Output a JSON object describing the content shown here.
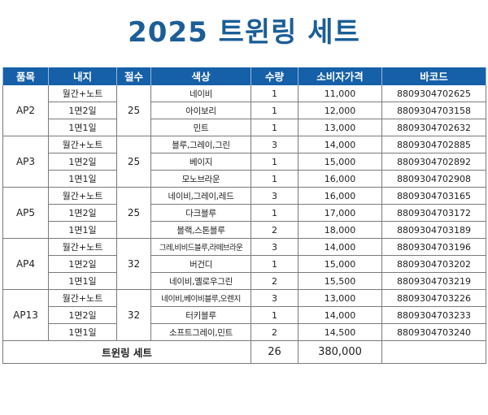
{
  "title": "2025 트윈링 세트",
  "headers": [
    "품목",
    "내지",
    "절수",
    "색상",
    "수량",
    "소비자가격",
    "바코드"
  ],
  "groups": [
    {
      "item": "AP2",
      "cut": "25",
      "rows": [
        {
          "inner": "월간+노트",
          "color": "네이비",
          "qty": "1",
          "price": "11,000",
          "barcode": "8809304702625"
        },
        {
          "inner": "1면2일",
          "color": "아이보리",
          "qty": "1",
          "price": "12,000",
          "barcode": "8809304703158"
        },
        {
          "inner": "1면1일",
          "color": "민트",
          "qty": "1",
          "price": "13,000",
          "barcode": "8809304702632"
        }
      ]
    },
    {
      "item": "AP3",
      "cut": "25",
      "rows": [
        {
          "inner": "월간+노트",
          "color": "블루,그레이,그린",
          "qty": "3",
          "price": "14,000",
          "barcode": "8809304702885"
        },
        {
          "inner": "1면2일",
          "color": "베이지",
          "qty": "1",
          "price": "15,000",
          "barcode": "8809304702892"
        },
        {
          "inner": "1면1일",
          "color": "모노브라운",
          "qty": "1",
          "price": "16,000",
          "barcode": "8809304702908"
        }
      ]
    },
    {
      "item": "AP5",
      "cut": "25",
      "rows": [
        {
          "inner": "월간+노트",
          "color": "네이비,그레이,레드",
          "qty": "3",
          "price": "16,000",
          "barcode": "8809304703165"
        },
        {
          "inner": "1면2일",
          "color": "다크블루",
          "qty": "1",
          "price": "17,000",
          "barcode": "8809304703172"
        },
        {
          "inner": "1면1일",
          "color": "블랙,스톤블루",
          "qty": "2",
          "price": "18,000",
          "barcode": "8809304703189"
        }
      ]
    },
    {
      "item": "AP4",
      "cut": "32",
      "rows": [
        {
          "inner": "월간+노트",
          "color": "그레,비비드블루,라떼브라운",
          "qty": "3",
          "price": "14,000",
          "barcode": "8809304703196"
        },
        {
          "inner": "1면2일",
          "color": "버건디",
          "qty": "1",
          "price": "15,000",
          "barcode": "8809304703202"
        },
        {
          "inner": "1면1일",
          "color": "네이비,옐로우그린",
          "qty": "2",
          "price": "15,500",
          "barcode": "8809304703219"
        }
      ]
    },
    {
      "item": "AP13",
      "cut": "32",
      "rows": [
        {
          "inner": "월간+노트",
          "color": "네이비,베이비블루,오렌지",
          "qty": "3",
          "price": "13,000",
          "barcode": "8809304703226"
        },
        {
          "inner": "1면2일",
          "color": "터키블루",
          "qty": "1",
          "price": "14,000",
          "barcode": "8809304703233"
        },
        {
          "inner": "1면1일",
          "color": "소프트그레이,민트",
          "qty": "2",
          "price": "14,500",
          "barcode": "8809304703240"
        }
      ]
    }
  ],
  "total": {
    "label": "트윈링 세트",
    "qty": "26",
    "price": "380,000"
  }
}
